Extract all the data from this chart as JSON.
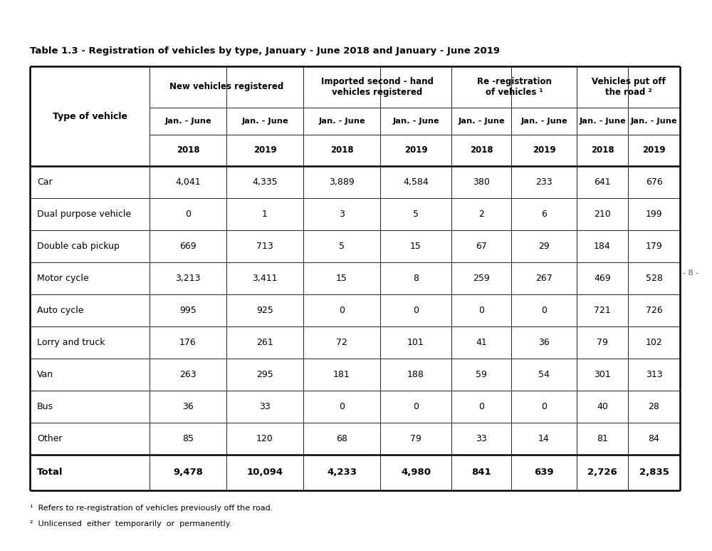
{
  "title": "Table 1.3 - Registration of vehicles by type, January - June 2018 and January - June 2019",
  "col_group_labels": [
    "New vehicles registered",
    "Imported second - hand\nvehicles registered",
    "Re -registration\nof vehicles ¹",
    "Vehicles put off\nthe road ²"
  ],
  "rows": [
    [
      "Car",
      "4,041",
      "4,335",
      "3,889",
      "4,584",
      "380",
      "233",
      "641",
      "676"
    ],
    [
      "Dual purpose vehicle",
      "0",
      "1",
      "3",
      "5",
      "2",
      "6",
      "210",
      "199"
    ],
    [
      "Double cab pickup",
      "669",
      "713",
      "5",
      "15",
      "67",
      "29",
      "184",
      "179"
    ],
    [
      "Motor cycle",
      "3,213",
      "3,411",
      "15",
      "8",
      "259",
      "267",
      "469",
      "528"
    ],
    [
      "Auto cycle",
      "995",
      "925",
      "0",
      "0",
      "0",
      "0",
      "721",
      "726"
    ],
    [
      "Lorry and truck",
      "176",
      "261",
      "72",
      "101",
      "41",
      "36",
      "79",
      "102"
    ],
    [
      "Van",
      "263",
      "295",
      "181",
      "188",
      "59",
      "54",
      "301",
      "313"
    ],
    [
      "Bus",
      "36",
      "33",
      "0",
      "0",
      "0",
      "0",
      "40",
      "28"
    ],
    [
      "Other",
      "85",
      "120",
      "68",
      "79",
      "33",
      "14",
      "81",
      "84"
    ]
  ],
  "total_row": [
    "Total",
    "9,478",
    "10,094",
    "4,233",
    "4,980",
    "841",
    "639",
    "2,726",
    "2,835"
  ],
  "footnote1": "¹  Refers to re-registration of vehicles previously off the road.",
  "footnote2": "²  Unlicensed  either  temporarily  or  permanently.",
  "side_text": "- 8 -",
  "bg_color": "#ffffff",
  "text_color": "#000000",
  "years": [
    "2018",
    "2019",
    "2018",
    "2019",
    "2018",
    "2019",
    "2018",
    "2019"
  ]
}
